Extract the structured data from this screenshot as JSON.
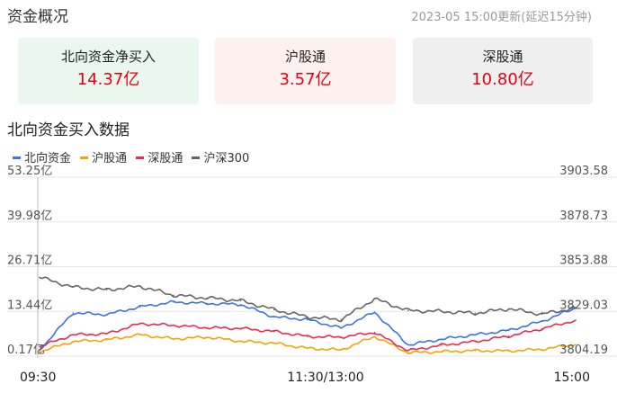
{
  "header": {
    "title": "资金概况",
    "update_time": "2023-05 15:00更新(延迟15分钟)"
  },
  "cards": [
    {
      "label": "北向资金净买入",
      "value": "14.37亿"
    },
    {
      "label": "沪股通",
      "value": "3.57亿"
    },
    {
      "label": "深股通",
      "value": "10.80亿"
    }
  ],
  "section_title": "北向资金买入数据",
  "colors": {
    "northbound": "#3b73e8",
    "sh_connect": "#f5a300",
    "sz_connect": "#ee2a4f",
    "csi300": "#666666",
    "up": "#e60012",
    "grid": "#e6e6e6"
  },
  "chart_data": {
    "type": "line",
    "title": "",
    "legend_position": "top-left",
    "grid": true,
    "x_ticks": [
      "09:30",
      "11:30/13:00",
      "15:00"
    ],
    "y_left_ticks": [
      "53.25亿",
      "39.98亿",
      "26.71亿",
      "13.44亿",
      "0.17亿"
    ],
    "y_right_ticks": [
      "3903.58",
      "3878.73",
      "3853.88",
      "3829.03",
      "3804.19"
    ],
    "y_left_range": [
      0.17,
      53.25
    ],
    "y_right_range": [
      3804.19,
      3903.58
    ],
    "x": [
      "09:30",
      "09:45",
      "10:00",
      "10:15",
      "10:30",
      "10:45",
      "11:00",
      "11:15",
      "11:30/13:00",
      "13:15",
      "13:30",
      "13:45",
      "14:00",
      "14:15",
      "14:30",
      "14:45",
      "15:00"
    ],
    "series": [
      {
        "name": "北向资金",
        "axis": "left",
        "color": "#3b73e8",
        "values": [
          2.0,
          13.0,
          12.5,
          14.8,
          16.2,
          15.8,
          15.5,
          11.8,
          11.0,
          8.5,
          13.2,
          3.5,
          5.2,
          6.5,
          7.8,
          10.5,
          14.4
        ]
      },
      {
        "name": "沪股通",
        "axis": "left",
        "color": "#f5a300",
        "values": [
          1.5,
          4.5,
          5.0,
          6.5,
          5.3,
          5.8,
          4.6,
          4.0,
          2.5,
          2.0,
          6.0,
          1.2,
          1.5,
          1.8,
          1.7,
          2.2,
          3.6
        ]
      },
      {
        "name": "深股通",
        "axis": "left",
        "color": "#ee2a4f",
        "values": [
          3.0,
          6.5,
          6.8,
          9.8,
          9.3,
          8.6,
          8.4,
          7.5,
          6.0,
          5.8,
          7.2,
          1.8,
          3.4,
          4.5,
          6.1,
          8.3,
          10.8
        ]
      },
      {
        "name": "沪深300",
        "axis": "right",
        "color": "#666666",
        "values": [
          3848.0,
          3842.5,
          3841.0,
          3843.0,
          3838.0,
          3836.5,
          3835.0,
          3830.0,
          3826.0,
          3824.5,
          3836.0,
          3829.5,
          3829.0,
          3828.0,
          3830.5,
          3827.5,
          3831.0
        ]
      }
    ]
  }
}
